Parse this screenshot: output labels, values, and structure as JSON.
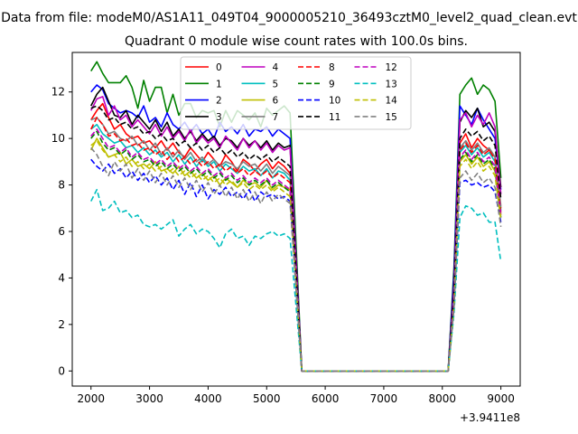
{
  "suptitle": "Data from file: modeM0/AS1A11_049T04_9000005210_36493cztM0_level2_quad_clean.evt",
  "chart_data": {
    "type": "line",
    "title": "Quadrant 0 module wise count rates with 100.0s bins.",
    "xlabel": "",
    "ylabel": "",
    "x_offset_label": "+3.9411e8",
    "xlim": [
      1680,
      9330
    ],
    "ylim": [
      -0.65,
      13.7
    ],
    "xticks": [
      2000,
      3000,
      4000,
      5000,
      6000,
      7000,
      8000,
      9000
    ],
    "yticks": [
      0,
      2,
      4,
      6,
      8,
      10,
      12
    ],
    "grid": false,
    "legend_position": "top-center",
    "x": [
      2000,
      2100,
      2200,
      2300,
      2400,
      2500,
      2600,
      2700,
      2800,
      2900,
      3000,
      3100,
      3200,
      3300,
      3400,
      3500,
      3600,
      3700,
      3800,
      3900,
      4000,
      4100,
      4200,
      4300,
      4400,
      4500,
      4600,
      4700,
      4800,
      4900,
      5000,
      5100,
      5200,
      5300,
      5400,
      5600,
      8100,
      8200,
      8300,
      8400,
      8500,
      8600,
      8700,
      8800,
      8900,
      9000
    ],
    "series": [
      {
        "name": "0",
        "color": "#ff0000",
        "dash": "solid",
        "values": [
          10.8,
          11.2,
          11.5,
          10.9,
          10.4,
          10.6,
          10.2,
          10.0,
          10.1,
          9.8,
          9.9,
          9.6,
          9.9,
          9.5,
          9.8,
          9.4,
          9.2,
          9.6,
          9.3,
          9.0,
          9.4,
          9.1,
          8.8,
          9.3,
          9.0,
          8.6,
          9.1,
          8.9,
          8.6,
          8.9,
          9.1,
          8.7,
          9.0,
          8.8,
          8.5,
          0,
          0,
          3.0,
          9.8,
          10.2,
          9.6,
          10.0,
          9.7,
          9.5,
          9.2,
          7.0
        ]
      },
      {
        "name": "1",
        "color": "#008000",
        "dash": "solid",
        "values": [
          12.9,
          13.3,
          12.8,
          12.4,
          12.4,
          12.4,
          12.7,
          12.2,
          11.3,
          12.5,
          11.6,
          12.2,
          12.2,
          11.1,
          11.9,
          11.0,
          11.5,
          11.5,
          10.9,
          11.2,
          11.1,
          11.2,
          10.5,
          11.2,
          10.7,
          11.2,
          11.0,
          10.8,
          11.1,
          10.5,
          11.3,
          11.0,
          11.2,
          11.4,
          11.1,
          0,
          0,
          4.5,
          11.9,
          12.3,
          12.6,
          11.9,
          12.3,
          12.1,
          11.6,
          8.3
        ]
      },
      {
        "name": "2",
        "color": "#0000ff",
        "dash": "solid",
        "values": [
          12.0,
          12.3,
          12.1,
          11.5,
          11.3,
          11.1,
          11.2,
          11.1,
          10.9,
          11.4,
          10.7,
          10.9,
          10.5,
          11.1,
          10.6,
          10.4,
          10.7,
          10.3,
          10.6,
          10.2,
          10.4,
          10.0,
          10.7,
          10.3,
          10.5,
          10.2,
          10.6,
          10.1,
          10.4,
          10.3,
          10.5,
          10.1,
          10.4,
          10.2,
          10.0,
          0,
          0,
          4.2,
          11.4,
          11.0,
          10.6,
          11.3,
          10.8,
          10.4,
          10.0,
          7.8
        ]
      },
      {
        "name": "3",
        "color": "#000000",
        "dash": "solid",
        "values": [
          11.4,
          11.9,
          12.2,
          11.6,
          11.0,
          10.9,
          11.2,
          10.6,
          11.0,
          10.7,
          10.4,
          10.8,
          10.3,
          10.7,
          10.1,
          10.4,
          10.0,
          10.3,
          9.9,
          10.2,
          9.9,
          10.1,
          9.7,
          10.0,
          9.9,
          9.6,
          10.0,
          9.7,
          9.9,
          9.6,
          9.9,
          9.5,
          9.8,
          9.6,
          9.7,
          0,
          0,
          3.8,
          10.7,
          11.2,
          10.9,
          11.3,
          10.5,
          10.7,
          10.3,
          7.9
        ]
      },
      {
        "name": "4",
        "color": "#bf00bf",
        "dash": "solid",
        "values": [
          11.2,
          11.7,
          11.8,
          11.0,
          11.4,
          10.8,
          11.0,
          10.5,
          10.8,
          10.5,
          10.2,
          10.6,
          10.1,
          10.5,
          10.0,
          10.3,
          9.9,
          10.4,
          9.8,
          10.1,
          9.8,
          10.0,
          9.6,
          10.1,
          9.8,
          9.5,
          10.0,
          9.6,
          9.9,
          9.5,
          9.8,
          9.4,
          9.7,
          9.5,
          9.6,
          0,
          0,
          3.6,
          10.8,
          11.1,
          10.5,
          11.0,
          10.6,
          11.1,
          10.5,
          7.6
        ]
      },
      {
        "name": "5",
        "color": "#00bfbf",
        "dash": "solid",
        "values": [
          10.4,
          10.6,
          10.2,
          10.0,
          9.8,
          9.9,
          9.6,
          9.7,
          9.4,
          9.6,
          9.3,
          9.5,
          9.2,
          9.4,
          9.0,
          9.3,
          8.9,
          9.2,
          8.8,
          9.1,
          8.8,
          9.0,
          8.6,
          8.9,
          8.7,
          8.5,
          8.8,
          8.6,
          8.7,
          8.4,
          8.7,
          8.3,
          8.6,
          8.5,
          8.2,
          0,
          0,
          3.2,
          9.4,
          9.7,
          9.3,
          9.6,
          9.2,
          9.4,
          9.0,
          6.9
        ]
      },
      {
        "name": "6",
        "color": "#bfbf00",
        "dash": "solid",
        "values": [
          9.5,
          10.0,
          9.6,
          9.2,
          9.3,
          9.4,
          8.9,
          9.1,
          8.8,
          8.9,
          8.7,
          9.0,
          8.6,
          8.7,
          8.5,
          8.8,
          8.4,
          8.6,
          8.3,
          8.5,
          8.2,
          8.4,
          8.0,
          8.3,
          8.1,
          7.9,
          8.2,
          8.0,
          8.1,
          7.9,
          8.2,
          7.8,
          8.0,
          7.9,
          7.8,
          0,
          0,
          3.0,
          9.0,
          9.3,
          8.9,
          9.2,
          8.8,
          9.0,
          8.6,
          6.7
        ]
      },
      {
        "name": "7",
        "color": "#808080",
        "dash": "solid",
        "values": [
          10.8,
          10.9,
          10.6,
          10.2,
          10.3,
          10.0,
          9.9,
          10.1,
          9.7,
          9.9,
          9.5,
          9.8,
          9.3,
          9.6,
          9.2,
          9.5,
          9.1,
          9.4,
          9.0,
          9.2,
          8.9,
          9.1,
          8.8,
          9.0,
          8.9,
          8.7,
          9.0,
          8.8,
          8.9,
          8.6,
          8.9,
          8.5,
          8.8,
          8.6,
          8.4,
          0,
          0,
          3.1,
          9.6,
          9.9,
          9.5,
          9.8,
          9.4,
          9.6,
          9.2,
          7.1
        ]
      },
      {
        "name": "8",
        "color": "#ff0000",
        "dash": "dashed",
        "values": [
          10.4,
          10.9,
          10.6,
          10.1,
          10.2,
          9.9,
          10.0,
          9.7,
          9.8,
          9.5,
          9.6,
          9.3,
          9.5,
          9.1,
          9.4,
          9.0,
          9.2,
          8.9,
          9.1,
          8.8,
          9.0,
          8.7,
          8.9,
          8.6,
          8.8,
          8.5,
          8.7,
          8.4,
          8.6,
          8.4,
          8.6,
          8.3,
          8.5,
          8.3,
          8.1,
          0,
          0,
          3.0,
          9.5,
          9.8,
          9.4,
          9.7,
          9.3,
          9.5,
          9.1,
          6.8
        ]
      },
      {
        "name": "9",
        "color": "#008000",
        "dash": "dashed",
        "values": [
          10.0,
          10.3,
          9.8,
          9.5,
          9.6,
          9.3,
          9.5,
          9.1,
          9.3,
          9.0,
          9.1,
          8.8,
          9.0,
          8.7,
          8.9,
          8.6,
          8.8,
          8.5,
          8.7,
          8.4,
          8.6,
          8.3,
          8.5,
          8.2,
          8.4,
          8.1,
          8.3,
          8.0,
          8.2,
          8.0,
          8.2,
          7.9,
          8.1,
          7.9,
          7.7,
          0,
          0,
          2.9,
          9.1,
          9.4,
          9.0,
          9.3,
          8.9,
          9.1,
          8.7,
          6.6
        ]
      },
      {
        "name": "10",
        "color": "#0000ff",
        "dash": "dashed",
        "values": [
          9.1,
          8.8,
          8.6,
          8.9,
          8.5,
          8.7,
          8.3,
          8.6,
          8.2,
          8.5,
          8.1,
          8.4,
          8.0,
          8.3,
          7.8,
          8.2,
          7.6,
          8.1,
          7.5,
          8.0,
          7.4,
          7.8,
          7.6,
          7.9,
          7.5,
          7.7,
          7.4,
          7.8,
          7.3,
          7.7,
          7.5,
          7.6,
          7.4,
          7.5,
          7.3,
          0,
          0,
          2.8,
          8.1,
          8.2,
          8.0,
          8.1,
          7.9,
          8.0,
          7.7,
          6.4
        ]
      },
      {
        "name": "11",
        "color": "#000000",
        "dash": "dashed",
        "values": [
          11.3,
          11.4,
          11.2,
          10.8,
          10.9,
          10.6,
          10.7,
          10.4,
          10.5,
          10.2,
          10.3,
          10.0,
          10.2,
          9.9,
          10.0,
          9.7,
          9.9,
          9.6,
          9.8,
          9.5,
          9.7,
          9.4,
          9.6,
          9.3,
          9.5,
          9.2,
          9.4,
          9.1,
          9.3,
          9.1,
          9.3,
          9.0,
          9.2,
          9.0,
          8.8,
          0,
          0,
          3.3,
          10.0,
          10.4,
          10.1,
          10.3,
          9.9,
          10.1,
          9.7,
          7.4
        ]
      },
      {
        "name": "12",
        "color": "#bf00bf",
        "dash": "dashed",
        "values": [
          10.1,
          10.4,
          10.0,
          9.6,
          9.7,
          9.4,
          9.6,
          9.2,
          9.4,
          9.1,
          9.2,
          8.9,
          9.1,
          8.8,
          9.0,
          8.7,
          8.9,
          8.6,
          8.8,
          8.5,
          8.7,
          8.4,
          8.6,
          8.3,
          8.5,
          8.2,
          8.4,
          8.1,
          8.3,
          8.1,
          8.3,
          8.0,
          8.2,
          8.0,
          7.8,
          0,
          0,
          3.0,
          9.2,
          9.5,
          9.1,
          9.4,
          9.0,
          9.2,
          8.8,
          6.7
        ]
      },
      {
        "name": "13",
        "color": "#00bfbf",
        "dash": "dashed",
        "values": [
          7.3,
          7.8,
          6.9,
          7.0,
          7.3,
          6.8,
          6.9,
          6.6,
          6.7,
          6.3,
          6.2,
          6.3,
          6.1,
          6.3,
          6.5,
          5.8,
          6.1,
          6.3,
          5.9,
          6.1,
          6.0,
          5.7,
          5.3,
          5.9,
          6.1,
          5.7,
          5.8,
          5.4,
          5.8,
          5.7,
          5.9,
          6.0,
          5.8,
          5.9,
          5.7,
          0,
          0,
          2.5,
          6.6,
          7.1,
          7.0,
          6.7,
          6.8,
          6.4,
          6.4,
          4.7
        ]
      },
      {
        "name": "14",
        "color": "#bfbf00",
        "dash": "dashed",
        "values": [
          9.7,
          9.9,
          9.5,
          9.2,
          9.3,
          9.0,
          9.2,
          8.8,
          9.0,
          8.7,
          8.9,
          8.6,
          8.8,
          8.5,
          8.7,
          8.4,
          8.6,
          8.3,
          8.5,
          8.2,
          8.4,
          8.1,
          8.3,
          8.0,
          8.2,
          7.9,
          8.1,
          7.8,
          8.0,
          7.8,
          8.0,
          7.7,
          7.9,
          7.7,
          7.5,
          0,
          0,
          2.8,
          8.8,
          9.1,
          8.7,
          9.0,
          8.6,
          8.8,
          8.4,
          6.5
        ]
      },
      {
        "name": "15",
        "color": "#808080",
        "dash": "dashed",
        "values": [
          9.6,
          9.3,
          8.8,
          8.4,
          9.0,
          8.6,
          8.9,
          8.3,
          8.7,
          8.2,
          8.6,
          8.1,
          8.5,
          8.0,
          8.4,
          7.9,
          8.3,
          7.8,
          8.2,
          7.7,
          8.1,
          7.6,
          8.0,
          7.5,
          7.9,
          7.4,
          7.8,
          7.3,
          7.7,
          7.2,
          7.7,
          7.3,
          7.6,
          7.4,
          7.2,
          0,
          0,
          2.7,
          8.3,
          8.6,
          8.2,
          8.5,
          8.1,
          8.3,
          7.9,
          6.2
        ]
      }
    ]
  }
}
